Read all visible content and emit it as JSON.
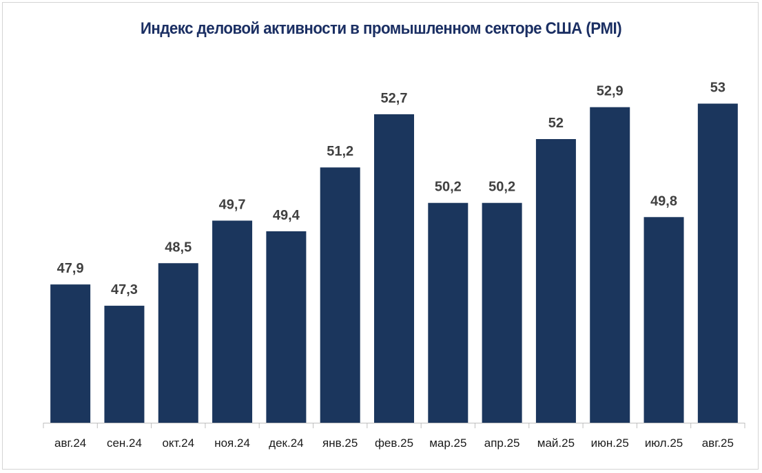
{
  "chart_data": {
    "type": "bar",
    "title": "Индекс деловой активности в промышленном секторе США (PMI)",
    "xlabel": "",
    "ylabel": "",
    "categories": [
      "авг.24",
      "сен.24",
      "окт.24",
      "ноя.24",
      "дек.24",
      "янв.25",
      "фев.25",
      "мар.25",
      "апр.25",
      "май.25",
      "июн.25",
      "июл.25",
      "авг.25"
    ],
    "values": [
      47.9,
      47.3,
      48.5,
      49.7,
      49.4,
      51.2,
      52.7,
      50.2,
      50.2,
      52,
      52.9,
      49.8,
      53
    ],
    "value_labels": [
      "47,9",
      "47,3",
      "48,5",
      "49,7",
      "49,4",
      "51,2",
      "52,7",
      "50,2",
      "50,2",
      "52",
      "52,9",
      "49,8",
      "53"
    ],
    "ylim": [
      44,
      54
    ],
    "grid": false,
    "legend": "none",
    "bar_color": "#1b365d",
    "title_color": "#1b2f63"
  }
}
